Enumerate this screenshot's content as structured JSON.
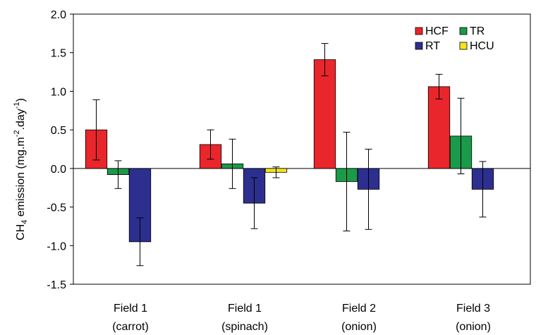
{
  "chart_data": {
    "type": "bar",
    "title": "",
    "xlabel": "",
    "ylabel_parts": {
      "pre": "CH",
      "sub": "4",
      "mid": " emission (mg.m",
      "sup1": "-2",
      "mid2": ".day",
      "sup2": "-1",
      "post": ")"
    },
    "ylim": [
      -1.5,
      2.0
    ],
    "yticks": [
      -1.5,
      -1.0,
      -0.5,
      0.0,
      0.5,
      1.0,
      1.5,
      2.0
    ],
    "ytick_labels": [
      "-1.5",
      "-1.0",
      "-0.5",
      "0.0",
      "0.5",
      "1.0",
      "1.5",
      "2.0"
    ],
    "categories": [
      {
        "line1": "Field 1",
        "line2": "(carrot)"
      },
      {
        "line1": "Field 1",
        "line2": "(spinach)"
      },
      {
        "line1": "Field 2",
        "line2": "(onion)"
      },
      {
        "line1": "Field 3",
        "line2": "(onion)"
      }
    ],
    "series": [
      {
        "name": "HCF",
        "color": "#e8262b",
        "values": [
          0.5,
          0.31,
          1.41,
          1.06
        ],
        "errors": [
          0.39,
          0.19,
          0.21,
          0.16
        ]
      },
      {
        "name": "TR",
        "color": "#1a9a4a",
        "values": [
          -0.08,
          0.06,
          -0.17,
          0.42
        ],
        "errors": [
          0.18,
          0.32,
          0.64,
          0.49
        ]
      },
      {
        "name": "RT",
        "color": "#2d2f8f",
        "values": [
          -0.95,
          -0.45,
          -0.27,
          -0.27
        ],
        "errors": [
          0.31,
          0.33,
          0.52,
          0.36
        ]
      },
      {
        "name": "HCU",
        "color": "#f2e51d",
        "values": [
          null,
          -0.05,
          null,
          null
        ],
        "errors": [
          null,
          0.07,
          null,
          null
        ]
      }
    ],
    "legend": {
      "placement": "top-right",
      "order": [
        "HCF",
        "TR",
        "RT",
        "HCU"
      ]
    },
    "grid": false
  }
}
